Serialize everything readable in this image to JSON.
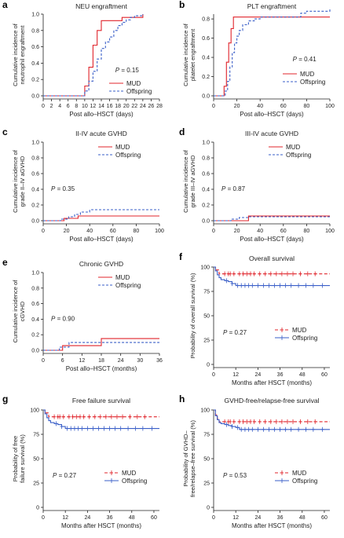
{
  "colors": {
    "mud": "#e0242b",
    "offspring": "#3a5fc8",
    "axis": "#222222"
  },
  "chart_data": [
    {
      "letter": "a",
      "title": "NEU engraftment",
      "type": "line",
      "kind": "cif",
      "xlabel": "Post allo–HSCT (days)",
      "ylabel": [
        "Cumulative incidence of",
        "neutrophil engraftment"
      ],
      "xlim": [
        0,
        28
      ],
      "ylim": [
        0,
        1.0
      ],
      "xticks": [
        "0",
        "2",
        "4",
        "6",
        "8",
        "10",
        "12",
        "14",
        "16",
        "18",
        "20",
        "22",
        "24",
        "26",
        "28"
      ],
      "yticks": [
        "0.0",
        "0.2",
        "0.4",
        "0.6",
        "0.8",
        "1.0"
      ],
      "pvalue": "0.15",
      "legend": "bottom-right",
      "series": [
        {
          "name": "MUD",
          "x": [
            0,
            10,
            11,
            12,
            13,
            14,
            15,
            19,
            24
          ],
          "y": [
            0,
            0.12,
            0.35,
            0.62,
            0.8,
            0.92,
            0.92,
            0.96,
            1.0
          ]
        },
        {
          "name": "Offspring",
          "x": [
            0,
            10,
            11,
            12,
            13,
            14,
            15,
            16,
            17,
            18,
            19,
            20,
            21,
            22,
            24
          ],
          "y": [
            0,
            0.06,
            0.18,
            0.3,
            0.45,
            0.58,
            0.66,
            0.72,
            0.8,
            0.86,
            0.9,
            0.93,
            0.96,
            0.98,
            1.0
          ]
        }
      ]
    },
    {
      "letter": "b",
      "title": "PLT engraftment",
      "type": "line",
      "kind": "cif",
      "xlabel": "Post allo–HSCT (days)",
      "ylabel": [
        "Cumulative incidence of",
        "platelet engraftment"
      ],
      "xlim": [
        0,
        100
      ],
      "ylim": [
        0,
        0.85
      ],
      "xticks": [
        "0",
        "20",
        "40",
        "60",
        "80",
        "100"
      ],
      "yticks": [
        "0.0",
        "0.2",
        "0.4",
        "0.6",
        "0.8"
      ],
      "pvalue": "0.41",
      "legend": "bottom-right",
      "series": [
        {
          "name": "MUD",
          "x": [
            0,
            9,
            11,
            13,
            15,
            17,
            60,
            100
          ],
          "y": [
            0,
            0.1,
            0.35,
            0.55,
            0.7,
            0.82,
            0.82,
            0.82
          ]
        },
        {
          "name": "Offspring",
          "x": [
            0,
            10,
            12,
            14,
            16,
            18,
            20,
            22,
            25,
            30,
            35,
            40,
            60,
            75,
            80,
            100
          ],
          "y": [
            0,
            0.05,
            0.15,
            0.3,
            0.45,
            0.55,
            0.62,
            0.68,
            0.74,
            0.78,
            0.8,
            0.82,
            0.82,
            0.86,
            0.88,
            0.9
          ]
        }
      ]
    },
    {
      "letter": "c",
      "title": "II-IV acute GVHD",
      "type": "line",
      "kind": "cif",
      "xlabel": "Post allo–HSCT (days)",
      "ylabel": [
        "Cumulative incidence of",
        "grade II–IV aGVHD"
      ],
      "xlim": [
        0,
        100
      ],
      "ylim": [
        0,
        1.0
      ],
      "xticks": [
        "0",
        "20",
        "40",
        "60",
        "80",
        "100"
      ],
      "yticks": [
        "0.0",
        "0.2",
        "0.4",
        "0.6",
        "0.8",
        "1.0"
      ],
      "pvalue": "0.35",
      "legend": "top-right",
      "series": [
        {
          "name": "MUD",
          "x": [
            0,
            18,
            30,
            100
          ],
          "y": [
            0,
            0.03,
            0.06,
            0.06
          ]
        },
        {
          "name": "Offspring",
          "x": [
            0,
            15,
            22,
            27,
            32,
            40,
            100
          ],
          "y": [
            0,
            0.02,
            0.05,
            0.08,
            0.11,
            0.14,
            0.14
          ]
        }
      ]
    },
    {
      "letter": "d",
      "title": "III-IV acute GVHD",
      "type": "line",
      "kind": "cif",
      "xlabel": "Post allo–HSCT (days)",
      "ylabel": [
        "Cumulative incidence of",
        "grade III–IV aGVHD"
      ],
      "xlim": [
        0,
        100
      ],
      "ylim": [
        0,
        1.0
      ],
      "xticks": [
        "0",
        "20",
        "40",
        "60",
        "80",
        "100"
      ],
      "yticks": [
        "0.0",
        "0.2",
        "0.4",
        "0.6",
        "0.8",
        "1.0"
      ],
      "pvalue": "0.87",
      "legend": "top-right",
      "series": [
        {
          "name": "MUD",
          "x": [
            0,
            30,
            100
          ],
          "y": [
            0,
            0.06,
            0.06
          ]
        },
        {
          "name": "Offspring",
          "x": [
            0,
            15,
            22,
            30,
            100
          ],
          "y": [
            0,
            0.02,
            0.04,
            0.05,
            0.05
          ]
        }
      ]
    },
    {
      "letter": "e",
      "title": "Chronic GVHD",
      "type": "line",
      "kind": "cif",
      "xlabel": "Post allo–HSCT (months)",
      "ylabel": [
        "Cumulative incidence of",
        "cGVHD"
      ],
      "xlim": [
        0,
        36
      ],
      "ylim": [
        0,
        1.0
      ],
      "xticks": [
        "0",
        "6",
        "12",
        "18",
        "24",
        "30",
        "36"
      ],
      "yticks": [
        "0.0",
        "0.2",
        "0.4",
        "0.6",
        "0.8",
        "1.0"
      ],
      "pvalue": "0.90",
      "legend": "top-right",
      "series": [
        {
          "name": "MUD",
          "x": [
            0,
            6,
            18,
            36
          ],
          "y": [
            0,
            0.06,
            0.15,
            0.15
          ]
        },
        {
          "name": "Offspring",
          "x": [
            0,
            5,
            8,
            36
          ],
          "y": [
            0,
            0.04,
            0.1,
            0.1
          ]
        }
      ]
    },
    {
      "letter": "f",
      "title": "Overall survival",
      "type": "line",
      "kind": "km",
      "xlabel": "Months after HSCT (months)",
      "ylabel": [
        "Probability of overall survival (%)"
      ],
      "xlim": [
        0,
        63
      ],
      "ylim": [
        0,
        100
      ],
      "xticks": [
        "0",
        "12",
        "24",
        "36",
        "48",
        "60"
      ],
      "yticks": [
        "0",
        "25",
        "50",
        "75",
        "100"
      ],
      "pvalue": "0.27",
      "legend": "middle-right",
      "series": [
        {
          "name": "MUD",
          "x": [
            0,
            1,
            3,
            63
          ],
          "y": [
            100,
            97,
            93,
            93
          ],
          "censor": [
            6,
            8,
            9,
            11,
            14,
            16,
            18,
            20,
            22,
            25,
            28,
            31,
            34,
            37,
            40,
            43,
            47,
            51,
            55
          ]
        },
        {
          "name": "Offspring",
          "x": [
            0,
            1,
            2,
            3,
            4,
            6,
            8,
            10,
            12,
            63
          ],
          "y": [
            100,
            96,
            92,
            89,
            87,
            86,
            85,
            83,
            81,
            81
          ],
          "censor": [
            7,
            10,
            13,
            15,
            17,
            19,
            21,
            24,
            27,
            30,
            33,
            36,
            39,
            42,
            46,
            50,
            54,
            59
          ]
        }
      ]
    },
    {
      "letter": "g",
      "title": "Free failure survival",
      "type": "line",
      "kind": "km",
      "xlabel": "Months after HSCT (months)",
      "ylabel": [
        "Probability of free",
        "failure survival (%)"
      ],
      "xlim": [
        0,
        63
      ],
      "ylim": [
        0,
        100
      ],
      "xticks": [
        "0",
        "12",
        "24",
        "36",
        "48",
        "60"
      ],
      "yticks": [
        "0",
        "25",
        "50",
        "75",
        "100"
      ],
      "pvalue": "0.27",
      "legend": "bottom-right",
      "series": [
        {
          "name": "MUD",
          "x": [
            0,
            1,
            3,
            63
          ],
          "y": [
            100,
            97,
            93,
            93
          ],
          "censor": [
            6,
            8,
            9,
            11,
            14,
            16,
            18,
            20,
            22,
            25,
            28,
            31,
            34,
            37,
            40,
            43,
            47,
            51,
            55
          ]
        },
        {
          "name": "Offspring",
          "x": [
            0,
            1,
            2,
            3,
            4,
            6,
            8,
            10,
            12,
            63
          ],
          "y": [
            100,
            96,
            92,
            89,
            87,
            86,
            85,
            83,
            81,
            81
          ],
          "censor": [
            7,
            10,
            13,
            15,
            17,
            19,
            21,
            24,
            27,
            30,
            33,
            36,
            39,
            42,
            46,
            50,
            54,
            59
          ]
        }
      ]
    },
    {
      "letter": "h",
      "title": "GVHD-free/relapse-free survival",
      "type": "line",
      "kind": "km",
      "xlabel": "Months after HSCT (months)",
      "ylabel": [
        "Probability of GVHD–",
        "free/relapse–free survival (%)"
      ],
      "xlim": [
        0,
        63
      ],
      "ylim": [
        0,
        100
      ],
      "xticks": [
        "0",
        "12",
        "24",
        "36",
        "48",
        "60"
      ],
      "yticks": [
        "0",
        "25",
        "50",
        "75",
        "100"
      ],
      "pvalue": "0.53",
      "legend": "bottom-right",
      "series": [
        {
          "name": "MUD",
          "x": [
            0,
            1,
            2,
            3,
            63
          ],
          "y": [
            100,
            95,
            91,
            88,
            88
          ],
          "censor": [
            6,
            8,
            9,
            11,
            14,
            16,
            18,
            20,
            22,
            25,
            28,
            31,
            34,
            37,
            40,
            43,
            47,
            51,
            55
          ]
        },
        {
          "name": "Offspring",
          "x": [
            0,
            1,
            2,
            3,
            4,
            6,
            8,
            10,
            12,
            14,
            63
          ],
          "y": [
            100,
            94,
            90,
            87,
            86,
            85,
            84,
            83,
            82,
            80,
            80
          ],
          "censor": [
            7,
            10,
            13,
            15,
            17,
            19,
            21,
            24,
            27,
            30,
            33,
            36,
            39,
            42,
            46,
            50,
            54,
            59
          ]
        }
      ]
    }
  ]
}
